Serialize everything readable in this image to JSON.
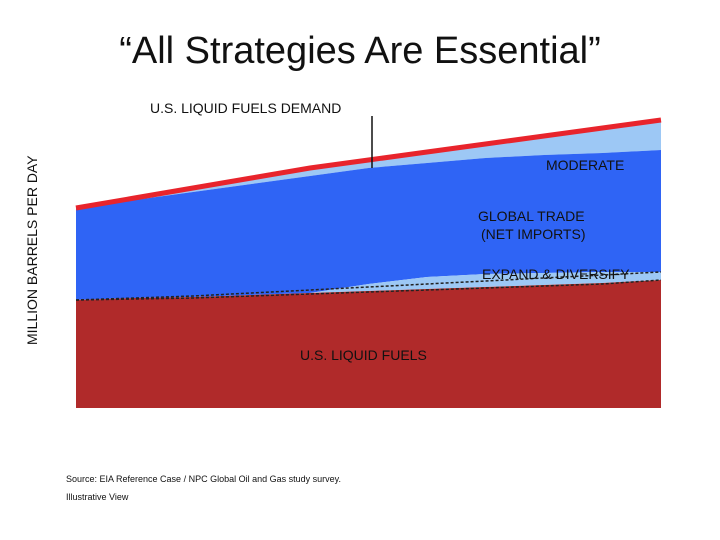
{
  "slide": {
    "title": "“All Strategies Are Essential”",
    "source": "Source: EIA Reference Case / NPC Global Oil and Gas study survey.",
    "note": "Illustrative View"
  },
  "chart_data": {
    "type": "area",
    "ylabel": "MILLION BARRELS PER DAY",
    "annotations": {
      "demand": "U.S. LIQUID FUELS DEMAND",
      "moderate": "MODERATE",
      "global_trade": [
        "GLOBAL TRADE",
        "(NET IMPORTS)"
      ],
      "expand": "EXPAND & DIVERSIFY",
      "us_fuels": "U.S. LIQUID FUELS"
    },
    "colors": {
      "us_liquid_fuels": "#b02a2a",
      "expand_diversify": "#9dc8f5",
      "global_trade": "#2f64f5",
      "moderate": "#9dc8f5",
      "demand_line": "#e8242c"
    },
    "x": [
      0,
      0.1,
      0.2,
      0.3,
      0.4,
      0.5,
      0.6,
      0.7,
      0.8,
      0.9,
      1
    ],
    "series": [
      {
        "key": "us_liquid_fuels",
        "values": [
          0.54,
          0.55,
          0.555,
          0.565,
          0.575,
          0.585,
          0.595,
          0.605,
          0.615,
          0.625,
          0.64
        ]
      },
      {
        "key": "expand_diversify",
        "values": [
          0.54,
          0.55,
          0.555,
          0.565,
          0.575,
          0.62,
          0.655,
          0.67,
          0.675,
          0.68,
          0.68
        ]
      },
      {
        "key": "global_trade",
        "values": [
          1.0,
          1.04,
          1.08,
          1.12,
          1.16,
          1.2,
          1.225,
          1.25,
          1.265,
          1.275,
          1.29
        ]
      },
      {
        "key": "moderate",
        "values": [
          1.0,
          1.05,
          1.1,
          1.15,
          1.2,
          1.24,
          1.28,
          1.32,
          1.36,
          1.4,
          1.44
        ]
      }
    ],
    "ylim": [
      0,
      1.5
    ],
    "dashed_lines": [
      [
        0.54,
        0.545,
        0.55,
        0.56,
        0.57,
        0.58,
        0.59,
        0.6,
        0.61,
        0.62,
        0.64
      ],
      [
        0.54,
        0.55,
        0.56,
        0.575,
        0.59,
        0.605,
        0.62,
        0.635,
        0.65,
        0.665,
        0.68
      ]
    ]
  }
}
